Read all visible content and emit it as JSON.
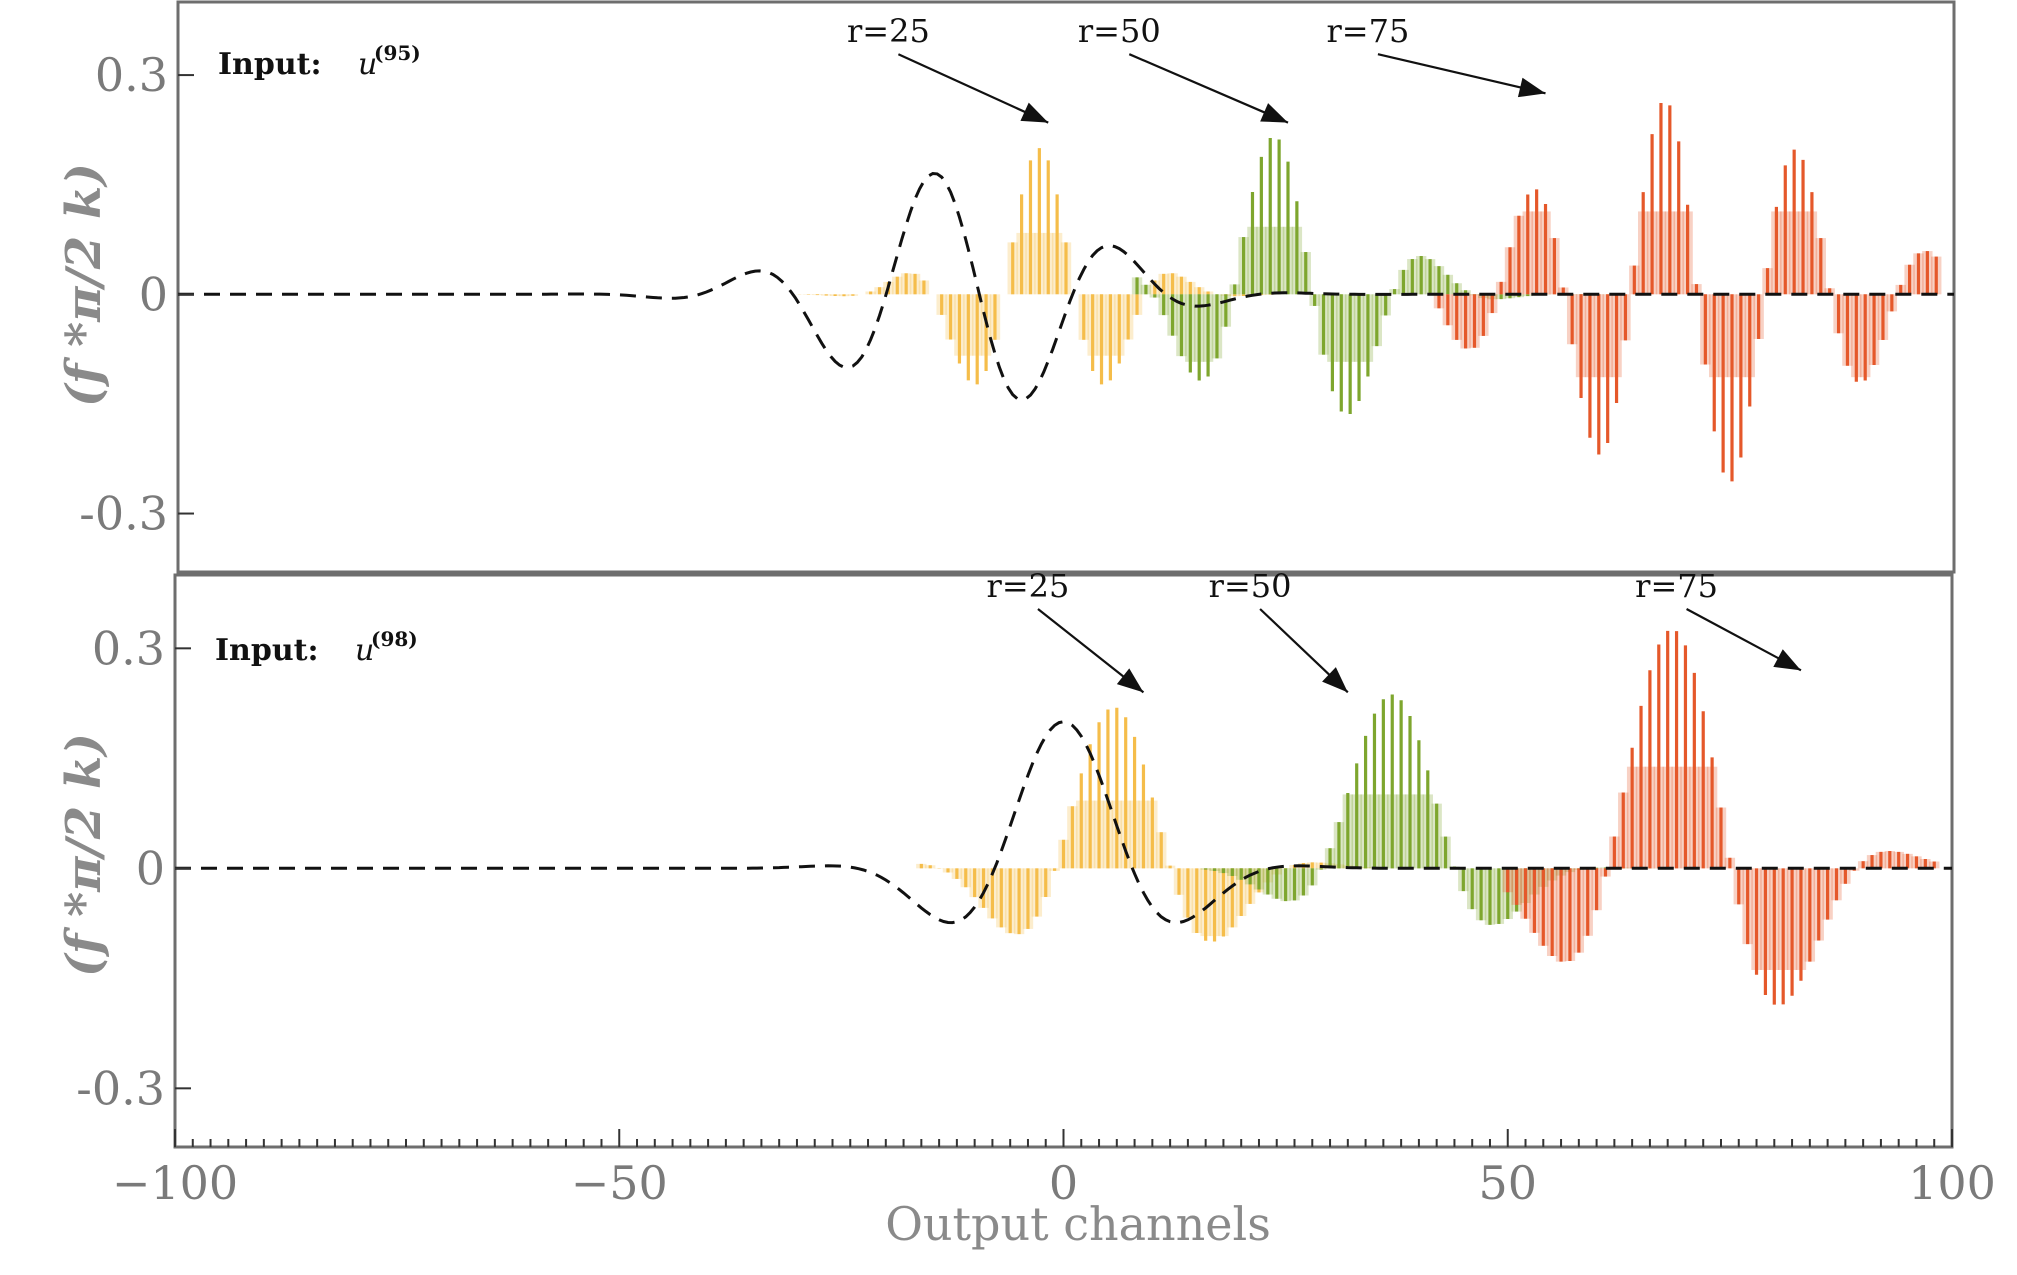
{
  "chart_data": {
    "type": "bar",
    "xlabel": "Output channels",
    "ylabel": "(f *π/2 k)",
    "xlim": [
      -100,
      100
    ],
    "ylim": [
      -0.38,
      0.4
    ],
    "x_ticks": [
      -100,
      -50,
      0,
      50,
      100
    ],
    "x_tick_labels": [
      "−100",
      "−50",
      "0",
      "50",
      "100"
    ],
    "y_ticks": [
      0.3,
      0,
      -0.3
    ],
    "y_tick_labels": [
      "0.3",
      "0",
      "-0.3"
    ],
    "colors": {
      "r25": "#f5bd4a",
      "r50": "#7ea62e",
      "r75": "#e5582a",
      "dashed": "#111111"
    },
    "panels": [
      {
        "input_label": "Input:",
        "input_var": "u",
        "input_sup": "(95)",
        "annotations": [
          {
            "text": "r=25",
            "x": -20,
            "y": 0.345,
            "target_x": -2,
            "target_y": 0.235
          },
          {
            "text": "r=50",
            "x": 6,
            "y": 0.345,
            "target_x": 25,
            "target_y": 0.235
          },
          {
            "text": "r=75",
            "x": 34,
            "y": 0.345,
            "target_x": 54,
            "target_y": 0.275
          }
        ],
        "series": [
          {
            "name": "r=25",
            "color": "#f5bd4a",
            "center": -3,
            "width": 11,
            "amp": 0.2,
            "period": 16,
            "phase": 0.0,
            "x_from": -30,
            "x_to": 70
          },
          {
            "name": "r=50",
            "color": "#7ea62e",
            "center": 25,
            "width": 13,
            "amp": 0.22,
            "period": 18,
            "phase": 0.6,
            "x_from": 8,
            "x_to": 85
          },
          {
            "name": "r=75",
            "color": "#e5582a",
            "center": 70,
            "width": 22,
            "amp": 0.27,
            "period": 15,
            "phase": 1.1,
            "x_from": 42,
            "x_to": 98
          }
        ],
        "dashed": {
          "center": -12,
          "width": 18,
          "amp": 0.17,
          "period": 21,
          "phase": 0.9
        }
      },
      {
        "input_label": "Input:",
        "input_var": "u",
        "input_sup": "(98)",
        "annotations": [
          {
            "text": "r=25",
            "x": -4,
            "y": 0.37,
            "target_x": 9,
            "target_y": 0.24
          },
          {
            "text": "r=50",
            "x": 21,
            "y": 0.37,
            "target_x": 32,
            "target_y": 0.24
          },
          {
            "text": "r=75",
            "x": 69,
            "y": 0.37,
            "target_x": 83,
            "target_y": 0.27
          }
        ],
        "series": [
          {
            "name": "r=25",
            "color": "#f5bd4a",
            "center": 6,
            "width": 13,
            "amp": 0.22,
            "period": 26,
            "phase": 0.1,
            "x_from": -16,
            "x_to": 60
          },
          {
            "name": "r=50",
            "color": "#7ea62e",
            "center": 38,
            "width": 11,
            "amp": 0.24,
            "period": 30,
            "phase": 0.3,
            "x_from": 16,
            "x_to": 70
          },
          {
            "name": "r=75",
            "color": "#e5582a",
            "center": 70,
            "width": 15,
            "amp": 0.33,
            "period": 28,
            "phase": 0.4,
            "x_from": 50,
            "x_to": 98
          }
        ],
        "dashed": {
          "center": 0,
          "width": 14,
          "amp": 0.2,
          "period": 31,
          "phase": 0.0
        }
      }
    ]
  }
}
